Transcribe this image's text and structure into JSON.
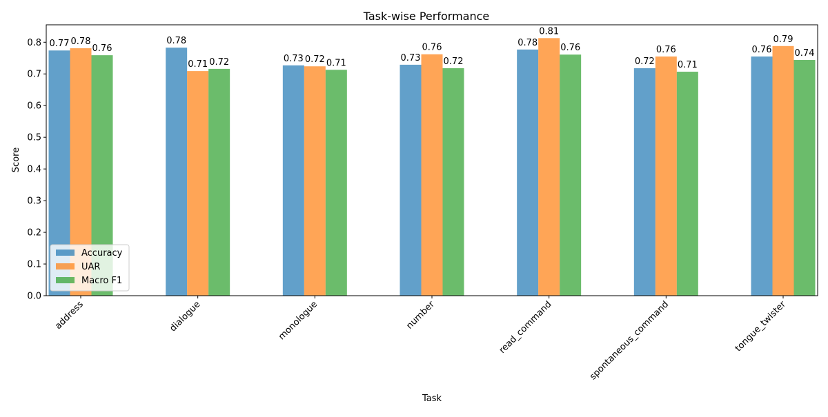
{
  "chart_data": {
    "type": "bar",
    "title": "Task-wise Performance",
    "xlabel": "Task",
    "ylabel": "Score",
    "ylim": [
      0,
      0.855
    ],
    "yticks": [
      "0.0",
      "0.1",
      "0.2",
      "0.3",
      "0.4",
      "0.5",
      "0.6",
      "0.7",
      "0.8"
    ],
    "categories": [
      "address",
      "dialogue",
      "monologue",
      "number",
      "read_command",
      "spontaneous_command",
      "tongue_twister"
    ],
    "series": [
      {
        "name": "Accuracy",
        "color": "#1f77b4",
        "values": [
          0.774,
          0.783,
          0.727,
          0.729,
          0.777,
          0.718,
          0.755
        ],
        "labels": [
          "0.77",
          "0.78",
          "0.73",
          "0.73",
          "0.78",
          "0.72",
          "0.76"
        ]
      },
      {
        "name": "UAR",
        "color": "#ff7f0e",
        "values": [
          0.781,
          0.709,
          0.724,
          0.762,
          0.813,
          0.755,
          0.788
        ],
        "labels": [
          "0.78",
          "0.71",
          "0.72",
          "0.76",
          "0.81",
          "0.76",
          "0.79"
        ]
      },
      {
        "name": "Macro F1",
        "color": "#2ca02c",
        "values": [
          0.759,
          0.716,
          0.713,
          0.718,
          0.761,
          0.707,
          0.744
        ],
        "labels": [
          "0.76",
          "0.72",
          "0.71",
          "0.72",
          "0.76",
          "0.71",
          "0.74"
        ]
      }
    ],
    "bar_opacity": 0.7,
    "legend_placement": "lower-left",
    "grid": false
  }
}
